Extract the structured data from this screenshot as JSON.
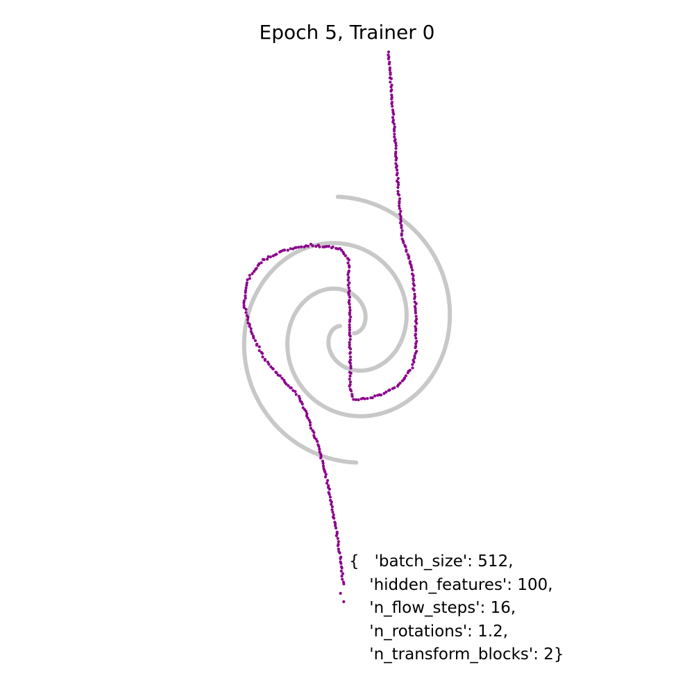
{
  "chart_data": {
    "type": "scatter",
    "title": "Epoch 5, Trainer 0",
    "axes_visible": false,
    "grid": false,
    "xlim": [
      -4,
      4
    ],
    "ylim": [
      -4,
      4
    ],
    "colors": {
      "target": "#9a9a9a",
      "samples": "#8b008b"
    },
    "series": [
      {
        "role": "target",
        "kind": "spiral",
        "arms": [
          {
            "rotation_deg": 0,
            "r_end": 1.92
          },
          {
            "rotation_deg": 180,
            "r_end": 1.92
          }
        ],
        "theta_span_deg": 480
      },
      {
        "role": "samples",
        "path": [
          [
            0.64,
            4.0
          ],
          [
            0.71,
            3.1
          ],
          [
            0.78,
            2.15
          ],
          [
            0.85,
            1.35
          ],
          [
            1.0,
            0.85
          ],
          [
            1.06,
            0.3
          ],
          [
            1.06,
            -0.3
          ],
          [
            1.0,
            -0.55
          ],
          [
            0.8,
            -0.8
          ],
          [
            0.5,
            -0.95
          ],
          [
            0.25,
            -1.0
          ],
          [
            0.1,
            -1.0
          ],
          [
            0.05,
            -0.85
          ],
          [
            0.05,
            0.0
          ],
          [
            0.02,
            1.0
          ],
          [
            -0.1,
            1.17
          ],
          [
            -0.55,
            1.22
          ],
          [
            -0.95,
            1.15
          ],
          [
            -1.3,
            1.0
          ],
          [
            -1.53,
            0.72
          ],
          [
            -1.58,
            0.35
          ],
          [
            -1.45,
            -0.1
          ],
          [
            -1.25,
            -0.45
          ],
          [
            -0.95,
            -0.75
          ],
          [
            -0.75,
            -0.95
          ],
          [
            -0.65,
            -1.15
          ],
          [
            -0.45,
            -1.65
          ],
          [
            -0.3,
            -2.2
          ],
          [
            -0.18,
            -2.8
          ],
          [
            -0.1,
            -3.3
          ],
          [
            -0.05,
            -3.7
          ]
        ],
        "tail_x": [
          -0.1,
          -0.05
        ],
        "tail_y": [
          -3.8,
          -3.92
        ]
      }
    ],
    "annotation": {
      "lines": [
        "{   'batch_size': 512,",
        "    'hidden_features': 100,",
        "    'n_flow_steps': 16,",
        "    'n_rotations': 1.2,",
        "    'n_transform_blocks': 2}"
      ],
      "placement": "bottom-right"
    }
  }
}
